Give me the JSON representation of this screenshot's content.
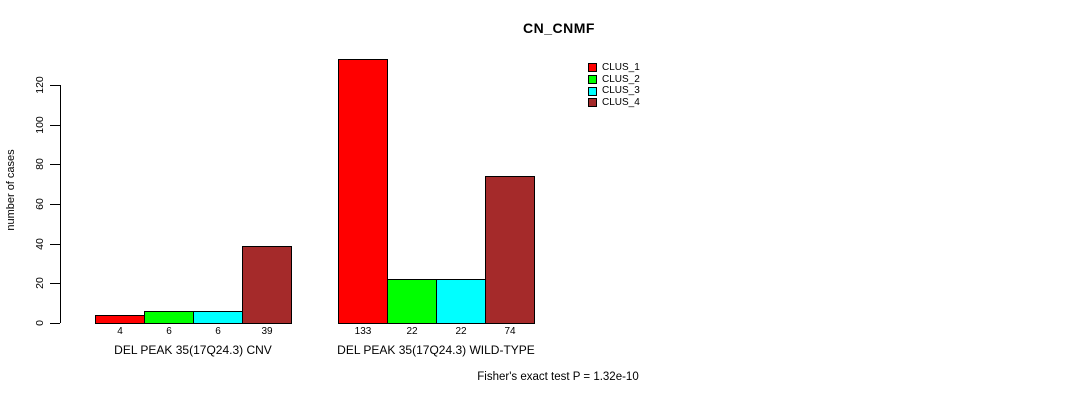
{
  "title": "CN_CNMF",
  "ylabel": "number of cases",
  "footer": "Fisher's exact test P = 1.32e-10",
  "legend": [
    {
      "label": "CLUS_1",
      "color": "#FF0000"
    },
    {
      "label": "CLUS_2",
      "color": "#00FF00"
    },
    {
      "label": "CLUS_3",
      "color": "#00FFFF"
    },
    {
      "label": "CLUS_4",
      "color": "#A52A2A"
    }
  ],
  "chart_data": {
    "type": "bar",
    "title": "CN_CNMF",
    "ylabel": "number of cases",
    "xlabel": "",
    "ylim": [
      0,
      133
    ],
    "y_ticks": [
      0,
      20,
      40,
      60,
      80,
      100,
      120
    ],
    "grid": false,
    "legend_position": "top-right",
    "categories": [
      "DEL PEAK 35(17Q24.3) CNV",
      "DEL PEAK 35(17Q24.3) WILD-TYPE"
    ],
    "series": [
      {
        "name": "CLUS_1",
        "color": "#FF0000",
        "values": [
          4,
          133
        ]
      },
      {
        "name": "CLUS_2",
        "color": "#00FF00",
        "values": [
          6,
          22
        ]
      },
      {
        "name": "CLUS_3",
        "color": "#00FFFF",
        "values": [
          6,
          22
        ]
      },
      {
        "name": "CLUS_4",
        "color": "#A52A2A",
        "values": [
          39,
          74
        ]
      }
    ],
    "value_labels": [
      [
        4,
        6,
        6,
        39
      ],
      [
        133,
        22,
        22,
        74
      ]
    ],
    "annotation": "Fisher's exact test P = 1.32e-10"
  }
}
